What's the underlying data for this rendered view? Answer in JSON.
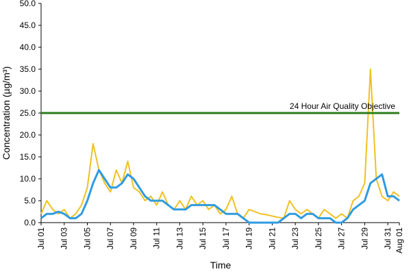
{
  "chart_data": {
    "type": "line",
    "x": [
      0,
      0.5,
      1,
      1.5,
      2,
      2.5,
      3,
      3.5,
      4,
      4.5,
      5,
      5.5,
      6,
      6.5,
      7,
      7.5,
      8,
      8.5,
      9,
      9.5,
      10,
      10.5,
      11,
      11.5,
      12,
      12.5,
      13,
      13.5,
      14,
      14.5,
      15,
      15.5,
      16,
      16.5,
      17,
      17.5,
      18,
      18.5,
      19,
      19.5,
      20,
      20.5,
      21,
      21.5,
      22,
      22.5,
      23,
      23.5,
      24,
      24.5,
      25,
      25.5,
      26,
      26.5,
      27,
      27.5,
      28,
      28.5,
      29,
      29.5,
      30,
      30.5,
      31
    ],
    "series": [
      {
        "color": "#f0c020",
        "width": 2,
        "values": [
          2,
          5,
          3,
          2,
          3,
          1,
          2,
          4,
          8,
          18,
          12,
          9,
          7,
          12,
          9,
          14,
          8,
          7,
          5,
          6,
          4,
          7,
          4,
          3,
          5,
          3,
          6,
          4,
          5,
          3,
          4,
          2,
          3,
          6,
          2,
          1,
          3,
          2.5,
          2,
          1.8,
          1.5,
          1.2,
          1,
          5,
          3,
          2,
          3,
          2,
          1,
          3,
          2,
          1,
          2,
          1,
          5,
          6,
          9,
          35,
          10,
          6,
          5,
          7,
          6
        ]
      },
      {
        "color": "#2e9be0",
        "width": 3,
        "values": [
          1,
          2,
          2,
          2.5,
          2,
          1,
          1,
          2,
          5,
          9,
          12,
          10,
          8,
          8,
          9,
          11,
          10,
          8,
          6,
          5,
          5,
          5,
          4,
          3,
          3,
          3,
          4,
          4,
          4,
          4,
          4,
          3,
          2,
          2,
          2,
          1,
          0,
          0,
          0,
          0,
          0,
          0,
          1,
          2,
          2,
          1,
          2,
          2,
          1,
          1,
          1,
          0,
          0,
          1,
          3,
          4,
          5,
          9,
          10,
          11,
          6,
          6,
          5
        ]
      }
    ],
    "reference_lines": [
      {
        "value": 25,
        "label": "24 Hour Air Quality Objective",
        "color": "#2a7d1a"
      }
    ],
    "xlabel": "Time",
    "ylabel": "Concentration (µg/m³)",
    "xlim": [
      0,
      31
    ],
    "xticks": [
      {
        "value": 0,
        "label": "Jul 01"
      },
      {
        "value": 2,
        "label": "Jul 03"
      },
      {
        "value": 4,
        "label": "Jul 05"
      },
      {
        "value": 6,
        "label": "Jul 07"
      },
      {
        "value": 8,
        "label": "Jul 09"
      },
      {
        "value": 10,
        "label": "Jul 11"
      },
      {
        "value": 12,
        "label": "Jul 13"
      },
      {
        "value": 14,
        "label": "Jul 15"
      },
      {
        "value": 16,
        "label": "Jul 17"
      },
      {
        "value": 18,
        "label": "Jul 19"
      },
      {
        "value": 20,
        "label": "Jul 21"
      },
      {
        "value": 22,
        "label": "Jul 23"
      },
      {
        "value": 24,
        "label": "Jul 25"
      },
      {
        "value": 26,
        "label": "Jul 27"
      },
      {
        "value": 28,
        "label": "Jul 29"
      },
      {
        "value": 30,
        "label": "Jul 31"
      },
      {
        "value": 31,
        "label": "Aug 01"
      }
    ],
    "ylim": [
      0,
      50
    ],
    "yticks": [
      {
        "value": 0,
        "label": "0.0"
      },
      {
        "value": 5,
        "label": "5.0"
      },
      {
        "value": 10,
        "label": "10.0"
      },
      {
        "value": 15,
        "label": "15.0"
      },
      {
        "value": 20,
        "label": "20.0"
      },
      {
        "value": 25,
        "label": "25.0"
      },
      {
        "value": 30,
        "label": "30.0"
      },
      {
        "value": 35,
        "label": "35.0"
      },
      {
        "value": 40,
        "label": "40.0"
      },
      {
        "value": 45,
        "label": "45.0"
      },
      {
        "value": 50,
        "label": "50.0"
      }
    ]
  }
}
